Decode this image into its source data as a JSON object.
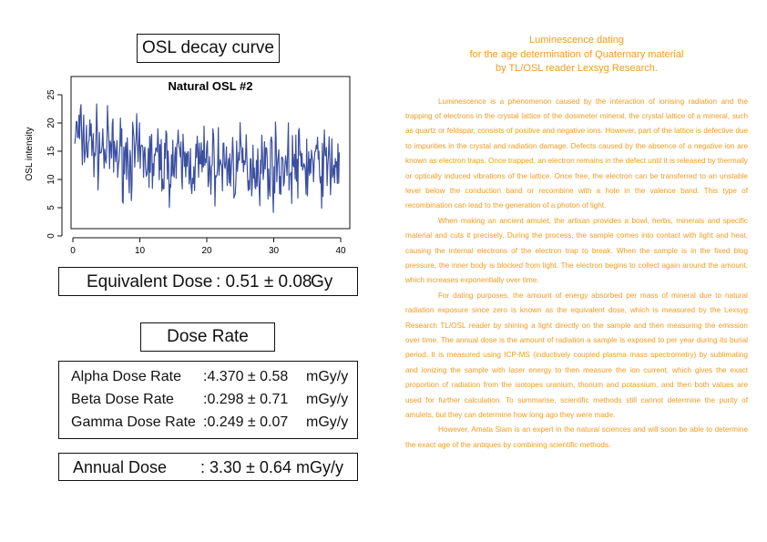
{
  "osl_section": {
    "title": "OSL decay curve"
  },
  "chart_data": {
    "type": "line",
    "title": "Natural OSL #2",
    "xlabel": "",
    "ylabel": "OSL intensity",
    "xlim": [
      0,
      40
    ],
    "ylim": [
      0,
      27
    ],
    "x_ticks": [
      "0",
      "10",
      "20",
      "30",
      "40"
    ],
    "y_ticks": [
      "0",
      "5",
      "10",
      "15",
      "20",
      "25"
    ],
    "grid": false,
    "color": "#3b4fa0",
    "series": []
  },
  "equivalent_dose": {
    "label": "Equivalent Dose",
    "value": ": 0.51 ± 0.08",
    "unit": "Gy"
  },
  "dose_rate_section": {
    "title": "Dose Rate"
  },
  "dose_rates": [
    {
      "label": "Alpha Dose Rate",
      "value": ":4.370 ± 0.58",
      "unit": "mGy/y"
    },
    {
      "label": "Beta Dose Rate",
      "value": ":0.298 ± 0.71",
      "unit": "mGy/y"
    },
    {
      "label": "Gamma Dose Rate",
      "value": ":0.249 ± 0.07",
      "unit": "mGy/y"
    }
  ],
  "annual_dose": {
    "label": "Annual Dose",
    "value": ": 3.30 ± 0.64 mGy/y"
  },
  "article": {
    "accent_color": "#f39a1f",
    "title_lines": [
      "Luminescence dating",
      "for the age determination of Quaternary material",
      "by TL/OSL reader Lexsyg Research."
    ],
    "paragraphs": [
      "Luminescence is a phenomenon caused by the interaction of ionising radiation and the trapping of electrons in the crystal lattice of the dosimeter mineral. the crystal lattice of a mineral, such as quartz or feldspar, consists of positive and negative ions. However, part of the lattice is defective due to impurities in the crystal and radiation damage. Defects caused by the absence of a negative ion are known as electron traps. Once trapped, an electron remains in the defect until it is released by thermally or optically induced vibrations of the lattice. Once free, the electron can be transferred to an unstable level below the conduction band or recombine with a hole in the valence band. This type of recombination can lead to the generation of a photon of light.",
      "When making an ancient amulet, the artisan provides a bowl, herbs, minerals and specific material and cuts it precisely. During the process, the sample comes into contact with light and heat, causing the internal electrons of the electron trap to break. When the sample is in the fixed blog pressure, the inner body is blocked from light. The electron begins to collect again around the amount, which increases exponentially over time.",
      "For dating purposes, the amount of energy absorbed per mass of mineral due to natural radiation exposure since zero is known as the equivalent dose, which is measured by the Lexsyg Research TL/OSL reader by shining a light directly on the sample and then measuring the emission over time. The annual dose is the amount of radiation a sample is exposed to per year during its burial period. It is measured using ICP-MS (inductively coupled plasma mass spectrometry) by sublimating and ionizing the sample with laser energy to then measure the ion current, which gives the exact proportion of radiation from the isotopes uranium, thorium and potassium, and then both values are used for further calculation. To summarise, scientific methods still cannot determine the purity of amulets, but they can determine how long ago they were made.",
      "However, Amata Siam is an expert in the natural sciences and will soon be able to determine the exact age of the antiques by combining scientific methods."
    ]
  }
}
